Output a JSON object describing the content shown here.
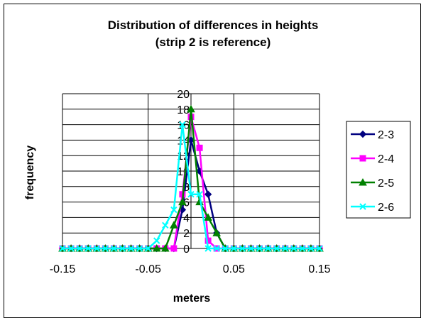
{
  "chart_data": {
    "type": "line",
    "title": "Distribution of differences in heights",
    "subtitle": "(strip 2 is reference)",
    "xlabel": "meters",
    "ylabel": "frequency",
    "xlim": [
      -0.15,
      0.15
    ],
    "ylim": [
      0,
      20
    ],
    "x_ticks": [
      -0.15,
      -0.05,
      0.05,
      0.15
    ],
    "x_tick_labels": [
      "-0.15",
      "-0.05",
      "0.05",
      "0.15"
    ],
    "y_ticks": [
      0,
      2,
      4,
      6,
      8,
      10,
      12,
      14,
      16,
      18,
      20
    ],
    "y_tick_labels": [
      "0",
      "2",
      "4",
      "6",
      "8",
      "10",
      "12",
      "14",
      "16",
      "18",
      "20"
    ],
    "grid": true,
    "legend_position": "right",
    "x": [
      -0.15,
      -0.14,
      -0.13,
      -0.12,
      -0.11,
      -0.1,
      -0.09,
      -0.08,
      -0.07,
      -0.06,
      -0.05,
      -0.04,
      -0.03,
      -0.02,
      -0.01,
      0,
      0.01,
      0.02,
      0.03,
      0.04,
      0.05,
      0.06,
      0.07,
      0.08,
      0.09,
      0.1,
      0.11,
      0.12,
      0.13,
      0.14,
      0.15
    ],
    "series": [
      {
        "name": "2-3",
        "color": "#000080",
        "marker": "diamond",
        "values": [
          0,
          0,
          0,
          0,
          0,
          0,
          0,
          0,
          0,
          0,
          0,
          0,
          0,
          0,
          5,
          14,
          10,
          7,
          2,
          0,
          0,
          0,
          0,
          0,
          0,
          0,
          0,
          0,
          0,
          0,
          0
        ]
      },
      {
        "name": "2-4",
        "color": "#ff00ff",
        "marker": "square",
        "values": [
          0,
          0,
          0,
          0,
          0,
          0,
          0,
          0,
          0,
          0,
          0,
          0,
          0,
          0,
          7,
          17,
          13,
          1,
          0,
          0,
          0,
          0,
          0,
          0,
          0,
          0,
          0,
          0,
          0,
          0,
          0
        ]
      },
      {
        "name": "2-5",
        "color": "#008000",
        "marker": "triangle",
        "values": [
          0,
          0,
          0,
          0,
          0,
          0,
          0,
          0,
          0,
          0,
          0,
          0,
          0,
          3,
          6,
          18,
          6,
          4,
          2,
          0,
          0,
          0,
          0,
          0,
          0,
          0,
          0,
          0,
          0,
          0,
          0
        ]
      },
      {
        "name": "2-6",
        "color": "#00ffff",
        "marker": "x",
        "values": [
          0,
          0,
          0,
          0,
          0,
          0,
          0,
          0,
          0,
          0,
          0,
          1,
          3,
          5,
          16,
          7,
          7,
          0,
          0,
          0,
          0,
          0,
          0,
          0,
          0,
          0,
          0,
          0,
          0,
          0,
          0
        ]
      }
    ]
  }
}
